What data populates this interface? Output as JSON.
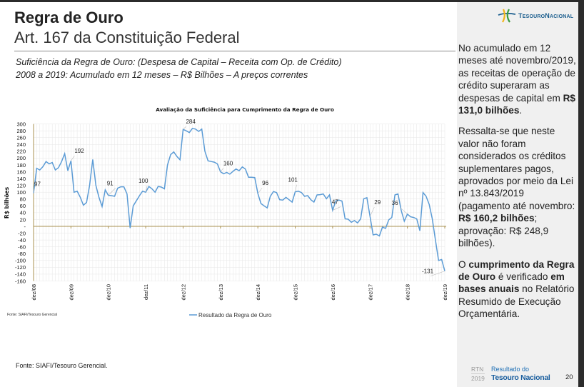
{
  "header": {
    "title": "Regra de Ouro",
    "subtitle": "Art. 167 da Constituição Federal",
    "line1": "Suficiência da Regra de Ouro: (Despesa de Capital – Receita com Op. de Crédito)",
    "line2": "2008 a 2019: Acumulado em 12 meses – R$ Bilhões – A preços correntes"
  },
  "logo": {
    "text": "TesouroNacional",
    "colors": [
      "#f2b418",
      "#3c9b3c",
      "#1b5e8e"
    ]
  },
  "panel": {
    "p1_pre": "No acumulado em 12 meses até novembro/2019, as receitas de operação de crédito superaram as despesas de capital em ",
    "p1_bold": "R$ 131,0 bilhões",
    "p1_post": ".",
    "p2_pre": "Ressalta-se que neste valor não foram considerados os créditos suplementares pagos, aprovados por meio da Lei nº 13.843/2019 (pagamento até novembro: ",
    "p2_bold1": "R$ 160,2 bilhões",
    "p2_mid": "; aprovação: R$ 248,9 bilhões).",
    "p3_pre": "O ",
    "p3_bold1": "cumprimento da Regra de Ouro",
    "p3_mid": " é verificado ",
    "p3_bold2": "em bases anuais",
    "p3_post": " no Relatório Resumido de Execução Orçamentária."
  },
  "footer": {
    "source_small": "Fonte: SIAFI/Tesouro Gerencial",
    "source": "Fonte: SIAFI/Tesouro Gerencial.",
    "rtn": "RTN",
    "year": "2019",
    "brand_line1": "Resultado do",
    "brand_line2": "Tesouro Nacional",
    "page": "20"
  },
  "chart_data": {
    "type": "line",
    "title": "Avaliação da Suficiência para Cumprimento da Regra de Ouro",
    "ylabel": "R$ bilhões",
    "xlabel": "",
    "ylim": [
      -160,
      300
    ],
    "yticks": [
      "300",
      "280",
      "260",
      "240",
      "220",
      "200",
      "180",
      "160",
      "140",
      "120",
      "100",
      "80",
      "60",
      "40",
      "20",
      "-",
      "-20",
      "-40",
      "-60",
      "-80",
      "-100",
      "-120",
      "-140",
      "-160"
    ],
    "xticks": [
      "dez/08",
      "dez/09",
      "dez/10",
      "dez/11",
      "dez/12",
      "dez/13",
      "dez/14",
      "dez/15",
      "dez/16",
      "dez/17",
      "dez/18",
      "dez/19"
    ],
    "grid": true,
    "legend": "bottom",
    "color": "#5b9bd5",
    "axis_color": "#a89050",
    "x_start": "dez/08",
    "x_end": "dez/19",
    "frequency": "monthly",
    "series": [
      {
        "name": "Resultado da Regra de Ouro",
        "values": [
          97,
          170,
          165,
          175,
          190,
          183,
          187,
          165,
          172,
          190,
          213,
          163,
          192,
          100,
          103,
          85,
          62,
          70,
          120,
          196,
          120,
          85,
          58,
          107,
          91,
          90,
          88,
          112,
          116,
          116,
          95,
          -5,
          60,
          75,
          90,
          103,
          100,
          117,
          110,
          100,
          117,
          115,
          110,
          180,
          210,
          218,
          205,
          195,
          284,
          280,
          275,
          287,
          285,
          278,
          285,
          220,
          192,
          190,
          188,
          183,
          160,
          154,
          158,
          153,
          161,
          168,
          163,
          174,
          168,
          144,
          144,
          143,
          96,
          67,
          60,
          54,
          88,
          102,
          99,
          78,
          77,
          85,
          78,
          71,
          101,
          103,
          99,
          88,
          90,
          78,
          71,
          92,
          93,
          95,
          81,
          92,
          47,
          74,
          77,
          74,
          22,
          21,
          12,
          17,
          10,
          22,
          81,
          84,
          29,
          -25,
          -23,
          -28,
          -2,
          -6,
          19,
          26,
          92,
          95,
          47,
          15,
          36,
          28,
          26,
          22,
          -13,
          99,
          88,
          64,
          22,
          -40,
          -100,
          -97,
          -131
        ]
      }
    ],
    "data_labels": [
      {
        "x": "dez/08",
        "value": "97"
      },
      {
        "x": "dez/09",
        "value": "192"
      },
      {
        "x": "dez/10",
        "value": "91"
      },
      {
        "x": "dez/11",
        "value": "100"
      },
      {
        "x": "dez/12",
        "value": "284"
      },
      {
        "x": "dez/13",
        "value": "160"
      },
      {
        "x": "dez/14",
        "value": "96"
      },
      {
        "x": "dez/15",
        "value": "101"
      },
      {
        "x": "dez/16",
        "value": "47"
      },
      {
        "x": "dez/17",
        "value": "29"
      },
      {
        "x": "dez/18",
        "value": "36"
      },
      {
        "x": "dez/19",
        "value": "-131"
      }
    ]
  }
}
